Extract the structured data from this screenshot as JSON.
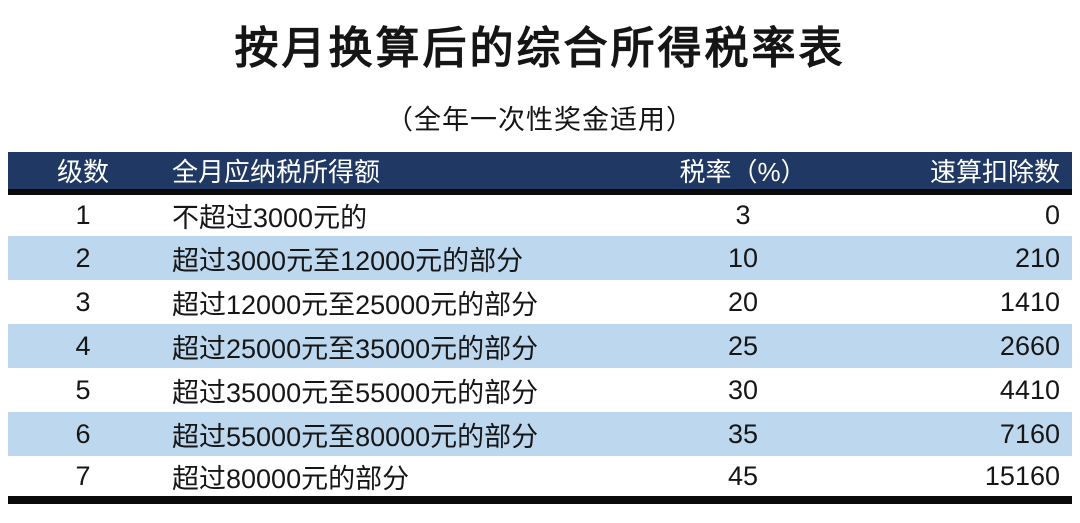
{
  "page": {
    "title": "按月换算后的综合所得税率表",
    "subtitle": "（全年一次性奖金适用）"
  },
  "table": {
    "columns": [
      "级数",
      "全月应纳税所得额",
      "税率（%）",
      "速算扣除数"
    ],
    "rows": [
      [
        "1",
        "不超过3000元的",
        "3",
        "0"
      ],
      [
        "2",
        "超过3000元至12000元的部分",
        "10",
        "210"
      ],
      [
        "3",
        "超过12000元至25000元的部分",
        "20",
        "1410"
      ],
      [
        "4",
        "超过25000元至35000元的部分",
        "25",
        "2660"
      ],
      [
        "5",
        "超过35000元至55000元的部分",
        "30",
        "4410"
      ],
      [
        "6",
        "超过55000元至80000元的部分",
        "35",
        "7160"
      ],
      [
        "7",
        "超过80000元的部分",
        "45",
        "15160"
      ]
    ]
  },
  "colors": {
    "header_background": "#1f3864",
    "header_text": "#ffffff",
    "alternate_row_background": "#bdd7ee",
    "row_background": "#ffffff",
    "rule": "#0a0a0a",
    "text": "#1a1a1a"
  }
}
